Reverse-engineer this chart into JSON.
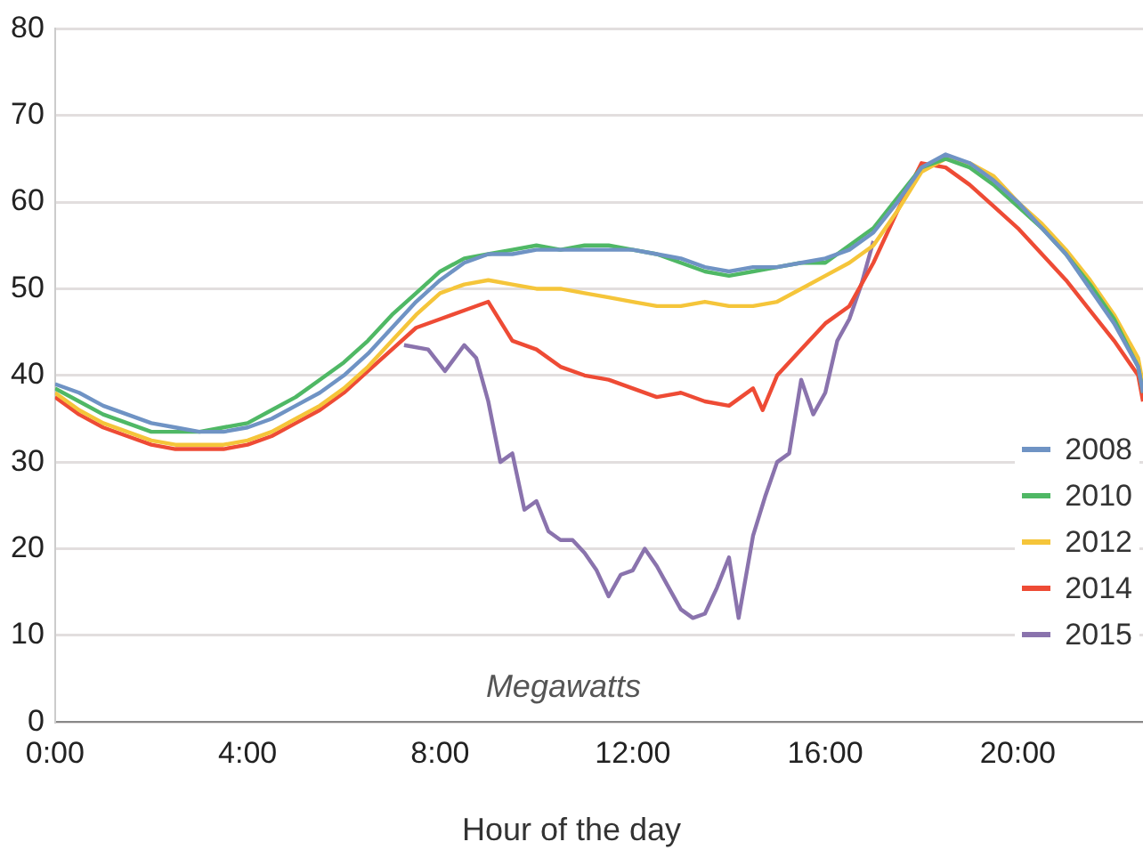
{
  "chart_data": {
    "type": "line",
    "xlabel": "Hour of the day",
    "annotations": [
      "Megawatts"
    ],
    "x": [
      0,
      0.5,
      1,
      1.5,
      2,
      2.5,
      3,
      3.5,
      4,
      4.5,
      5,
      5.5,
      6,
      6.5,
      7,
      7.5,
      8,
      8.5,
      9,
      9.5,
      10,
      10.5,
      11,
      11.5,
      12,
      12.5,
      13,
      13.5,
      14,
      14.5,
      15,
      15.5,
      16,
      16.5,
      17,
      17.5,
      18,
      18.5,
      19,
      19.5,
      20,
      20.5,
      21,
      21.5,
      22,
      22.5,
      22.6
    ],
    "series": [
      {
        "name": "2008",
        "color": "#6f93c4",
        "values": [
          39,
          38,
          36.5,
          35.5,
          34.5,
          34,
          33.5,
          33.5,
          34,
          35,
          36.5,
          38,
          40,
          42.5,
          45.5,
          48.5,
          51,
          53,
          54,
          54,
          54.5,
          54.5,
          54.5,
          54.5,
          54.5,
          54,
          53.5,
          52.5,
          52,
          52.5,
          52.5,
          53,
          53.5,
          54.5,
          56.5,
          60,
          64,
          65.5,
          64.5,
          62.5,
          60,
          57,
          54,
          50,
          46,
          41,
          38
        ]
      },
      {
        "name": "2010",
        "color": "#4fb865",
        "values": [
          38.5,
          37,
          35.5,
          34.5,
          33.5,
          33.5,
          33.5,
          34,
          34.5,
          36,
          37.5,
          39.5,
          41.5,
          44,
          47,
          49.5,
          52,
          53.5,
          54,
          54.5,
          55,
          54.5,
          55,
          55,
          54.5,
          54,
          53,
          52,
          51.5,
          52,
          52.5,
          53,
          53,
          55,
          57,
          60.5,
          64,
          65,
          64,
          62,
          59.5,
          57,
          54,
          50.5,
          46.5,
          41,
          38
        ]
      },
      {
        "name": "2012",
        "color": "#f5c53a",
        "values": [
          38,
          36,
          34.5,
          33.5,
          32.5,
          32,
          32,
          32,
          32.5,
          33.5,
          35,
          36.5,
          38.5,
          41,
          44,
          47,
          49.5,
          50.5,
          51,
          50.5,
          50,
          50,
          49.5,
          49,
          48.5,
          48,
          48,
          48.5,
          48,
          48,
          48.5,
          50,
          51.5,
          53,
          55,
          59,
          63.5,
          65,
          64.5,
          63,
          60,
          57.5,
          54.5,
          51,
          47,
          42,
          39
        ]
      },
      {
        "name": "2014",
        "color": "#ee4b35",
        "x": [
          0,
          0.5,
          1,
          1.5,
          2,
          2.5,
          3,
          3.5,
          4,
          4.5,
          5,
          5.5,
          6,
          6.5,
          7,
          7.5,
          8,
          8.5,
          9,
          9.5,
          10,
          10.5,
          11,
          11.5,
          12,
          12.5,
          13,
          13.5,
          14,
          14.5,
          14.7,
          15,
          15.5,
          16,
          16.5,
          17,
          17.5,
          18,
          18.5,
          19,
          19.5,
          20,
          20.5,
          21,
          21.5,
          22,
          22.5,
          22.6
        ],
        "values": [
          37.5,
          35.5,
          34,
          33,
          32,
          31.5,
          31.5,
          31.5,
          32,
          33,
          34.5,
          36,
          38,
          40.5,
          43,
          45.5,
          46.5,
          47.5,
          48.5,
          44,
          43,
          41,
          40,
          39.5,
          38.5,
          37.5,
          38,
          37,
          36.5,
          38.5,
          36,
          40,
          43,
          46,
          48,
          53,
          59,
          64.5,
          64,
          62,
          59.5,
          57,
          54,
          51,
          47.5,
          44,
          40,
          37
        ]
      },
      {
        "name": "2015",
        "color": "#8a73ad",
        "x": [
          7.25,
          7.75,
          8.1,
          8.5,
          8.75,
          9,
          9.25,
          9.5,
          9.75,
          10,
          10.25,
          10.5,
          10.75,
          11,
          11.25,
          11.5,
          11.75,
          12,
          12.25,
          12.5,
          12.75,
          13,
          13.25,
          13.5,
          13.75,
          14,
          14.2,
          14.5,
          14.75,
          15,
          15.25,
          15.5,
          15.75,
          16,
          16.25,
          16.5,
          16.75,
          17
        ],
        "values": [
          43.5,
          43,
          40.5,
          43.5,
          42,
          37,
          30,
          31,
          24.5,
          25.5,
          22,
          21,
          21,
          19.5,
          17.5,
          14.5,
          17,
          17.5,
          20,
          18,
          15.5,
          13,
          12,
          12.5,
          15.5,
          19,
          12,
          21.5,
          26,
          30,
          31,
          39.5,
          35.5,
          38,
          44,
          46.5,
          50.5,
          55.5
        ]
      }
    ],
    "xlim": [
      0,
      22.6
    ],
    "xticks": [
      {
        "value": 0,
        "label": "0:00"
      },
      {
        "value": 4,
        "label": "4:00"
      },
      {
        "value": 8,
        "label": "8:00"
      },
      {
        "value": 12,
        "label": "12:00"
      },
      {
        "value": 16,
        "label": "16:00"
      },
      {
        "value": 20,
        "label": "20:00"
      }
    ],
    "ylim": [
      0,
      80
    ],
    "yticks": [
      0,
      10,
      20,
      30,
      40,
      50,
      60,
      70,
      80
    ],
    "grid": "y",
    "legend": "bottom right",
    "marker": "none",
    "line_style": "solid"
  }
}
